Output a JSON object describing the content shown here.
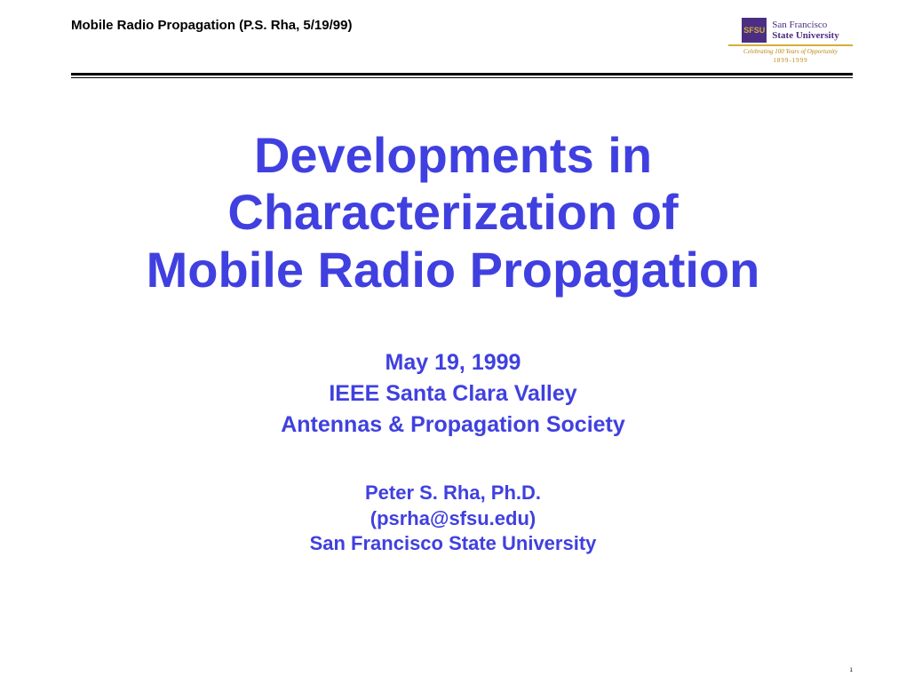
{
  "header": {
    "text": "Mobile Radio Propagation (P.S. Rha, 5/19/99)",
    "logo": {
      "badge": "SFSU",
      "line1": "San Francisco",
      "line2": "State University",
      "tagline": "Celebrating 100 Years of Opportunity",
      "years": "1899-1999"
    }
  },
  "title": {
    "line1": "Developments in",
    "line2": "Characterization of",
    "line3": "Mobile Radio Propagation"
  },
  "subtitle": {
    "date": "May 19, 1999",
    "org1": "IEEE Santa Clara Valley",
    "org2": "Antennas & Propagation Society"
  },
  "author": {
    "name": "Peter S. Rha, Ph.D.",
    "email": "(psrha@sfsu.edu)",
    "affiliation": "San Francisco State University"
  },
  "colors": {
    "title_color": "#4040e0",
    "text_color": "#000000",
    "background": "#ffffff",
    "logo_purple": "#4b2e83",
    "logo_gold": "#d4af37"
  },
  "typography": {
    "main_font": "Comic Sans MS",
    "title_size": 56,
    "subtitle_size": 25,
    "author_size": 22,
    "header_size": 15
  },
  "page_number": "1"
}
